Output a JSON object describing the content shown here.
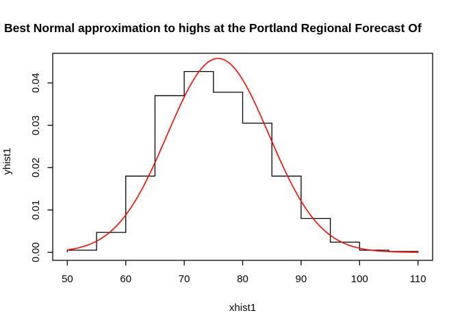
{
  "chart_data": {
    "type": "bar",
    "subtype": "density-histogram-with-normal-curve",
    "title": "Best Normal approximation to highs at the Portland Regional Forecast Of",
    "xlabel": "xhist1",
    "ylabel": "yhist1",
    "xlim": [
      47.5,
      112.5
    ],
    "ylim": [
      -0.0019,
      0.047
    ],
    "x_ticks": [
      50,
      60,
      70,
      80,
      90,
      100,
      110
    ],
    "y_ticks": [
      0,
      0.01,
      0.02,
      0.03,
      0.04
    ],
    "y_tick_labels": [
      "0.00",
      "0.01",
      "0.02",
      "0.03",
      "0.04"
    ],
    "grid": false,
    "legend": "none",
    "background_color": "#ffffff",
    "axis_color": "#000000",
    "histogram": {
      "name": "highs-density-histogram",
      "bin_edges": [
        50,
        55,
        60,
        65,
        70,
        75,
        80,
        85,
        90,
        95,
        100,
        105,
        110
      ],
      "densities": [
        0.0005,
        0.0047,
        0.018,
        0.037,
        0.0427,
        0.0378,
        0.0305,
        0.018,
        0.008,
        0.0024,
        0.0005,
        0.0002
      ],
      "color": "#000000"
    },
    "curve": {
      "name": "best-fit-normal-density",
      "mean": 75.8,
      "sd": 8.7,
      "peak_density": 0.0458,
      "x_range": [
        50,
        110
      ],
      "color": "#FF0000"
    }
  }
}
